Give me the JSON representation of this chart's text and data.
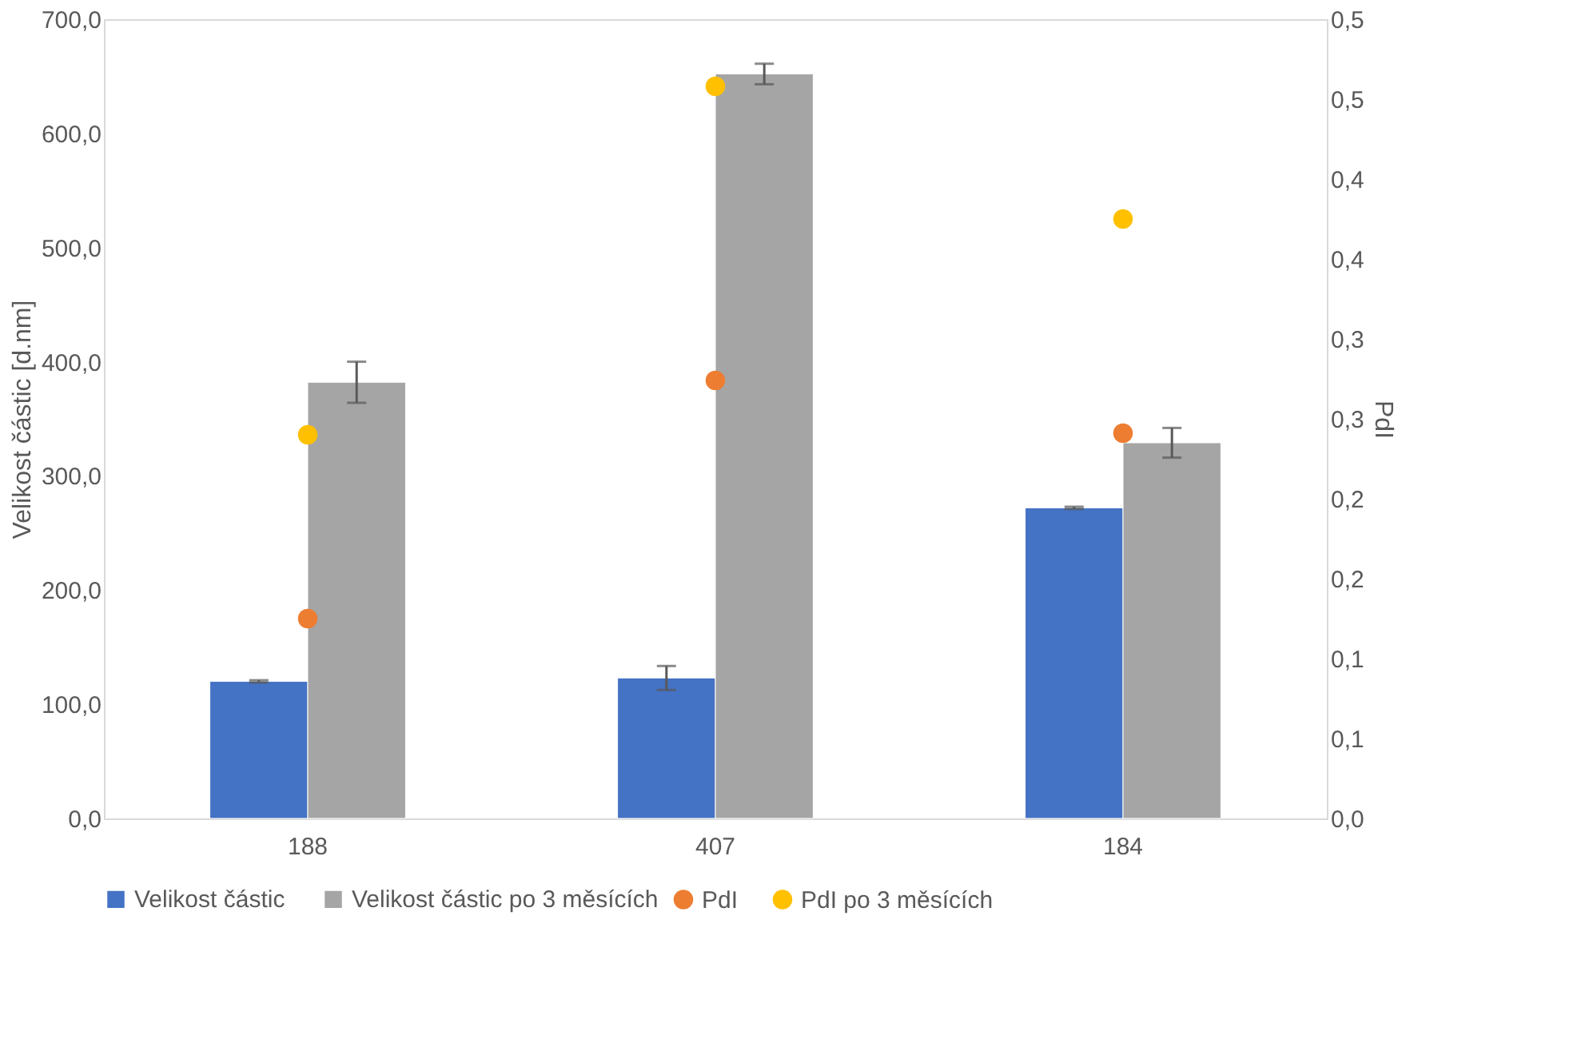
{
  "chart_data": {
    "type": "bar",
    "categories": [
      "188",
      "407",
      "184"
    ],
    "ylabel": "Velikost částic [d.nm]",
    "y2label": "PdI",
    "ylim": [
      0,
      700
    ],
    "yticks": [
      {
        "value": 0,
        "label": "0,0"
      },
      {
        "value": 100,
        "label": "100,0"
      },
      {
        "value": 200,
        "label": "200,0"
      },
      {
        "value": 300,
        "label": "300,0"
      },
      {
        "value": 400,
        "label": "400,0"
      },
      {
        "value": 500,
        "label": "500,0"
      },
      {
        "value": 600,
        "label": "600,0"
      },
      {
        "value": 700,
        "label": "700,0"
      }
    ],
    "y2lim": [
      0,
      0.5
    ],
    "y2ticks": [
      {
        "value": 0,
        "label": "0,0"
      },
      {
        "value": 0.05,
        "label": "0,1"
      },
      {
        "value": 0.1,
        "label": "0,1"
      },
      {
        "value": 0.15,
        "label": "0,2"
      },
      {
        "value": 0.2,
        "label": "0,2"
      },
      {
        "value": 0.25,
        "label": "0,3"
      },
      {
        "value": 0.3,
        "label": "0,3"
      },
      {
        "value": 0.35,
        "label": "0,4"
      },
      {
        "value": 0.4,
        "label": "0,4"
      },
      {
        "value": 0.45,
        "label": "0,5"
      },
      {
        "value": 0.5,
        "label": "0,5"
      }
    ],
    "series": [
      {
        "name": "Velikost částic",
        "color": "#4472c4",
        "values": [
          120,
          123,
          272
        ],
        "errors": [
          1,
          10.5,
          1
        ]
      },
      {
        "name": "Velikost částic po 3 měsících",
        "color": "#a5a5a5",
        "values": [
          382,
          652,
          329
        ],
        "errors": [
          18,
          9,
          13
        ]
      },
      {
        "name": "PdI",
        "type": "scatter",
        "axis": "y2",
        "x": [
          "188",
          "407",
          "184"
        ],
        "color": "#ed7d31",
        "values": [
          0.125,
          0.274,
          0.241
        ]
      },
      {
        "name": "PdI po 3 měsících",
        "type": "scatter",
        "axis": "y2",
        "x": [
          "188",
          "407",
          "184"
        ],
        "color": "#ffc000",
        "values": [
          0.24,
          0.458,
          0.375
        ]
      }
    ],
    "grid": false,
    "legend": "bottom",
    "marker": "circle"
  }
}
